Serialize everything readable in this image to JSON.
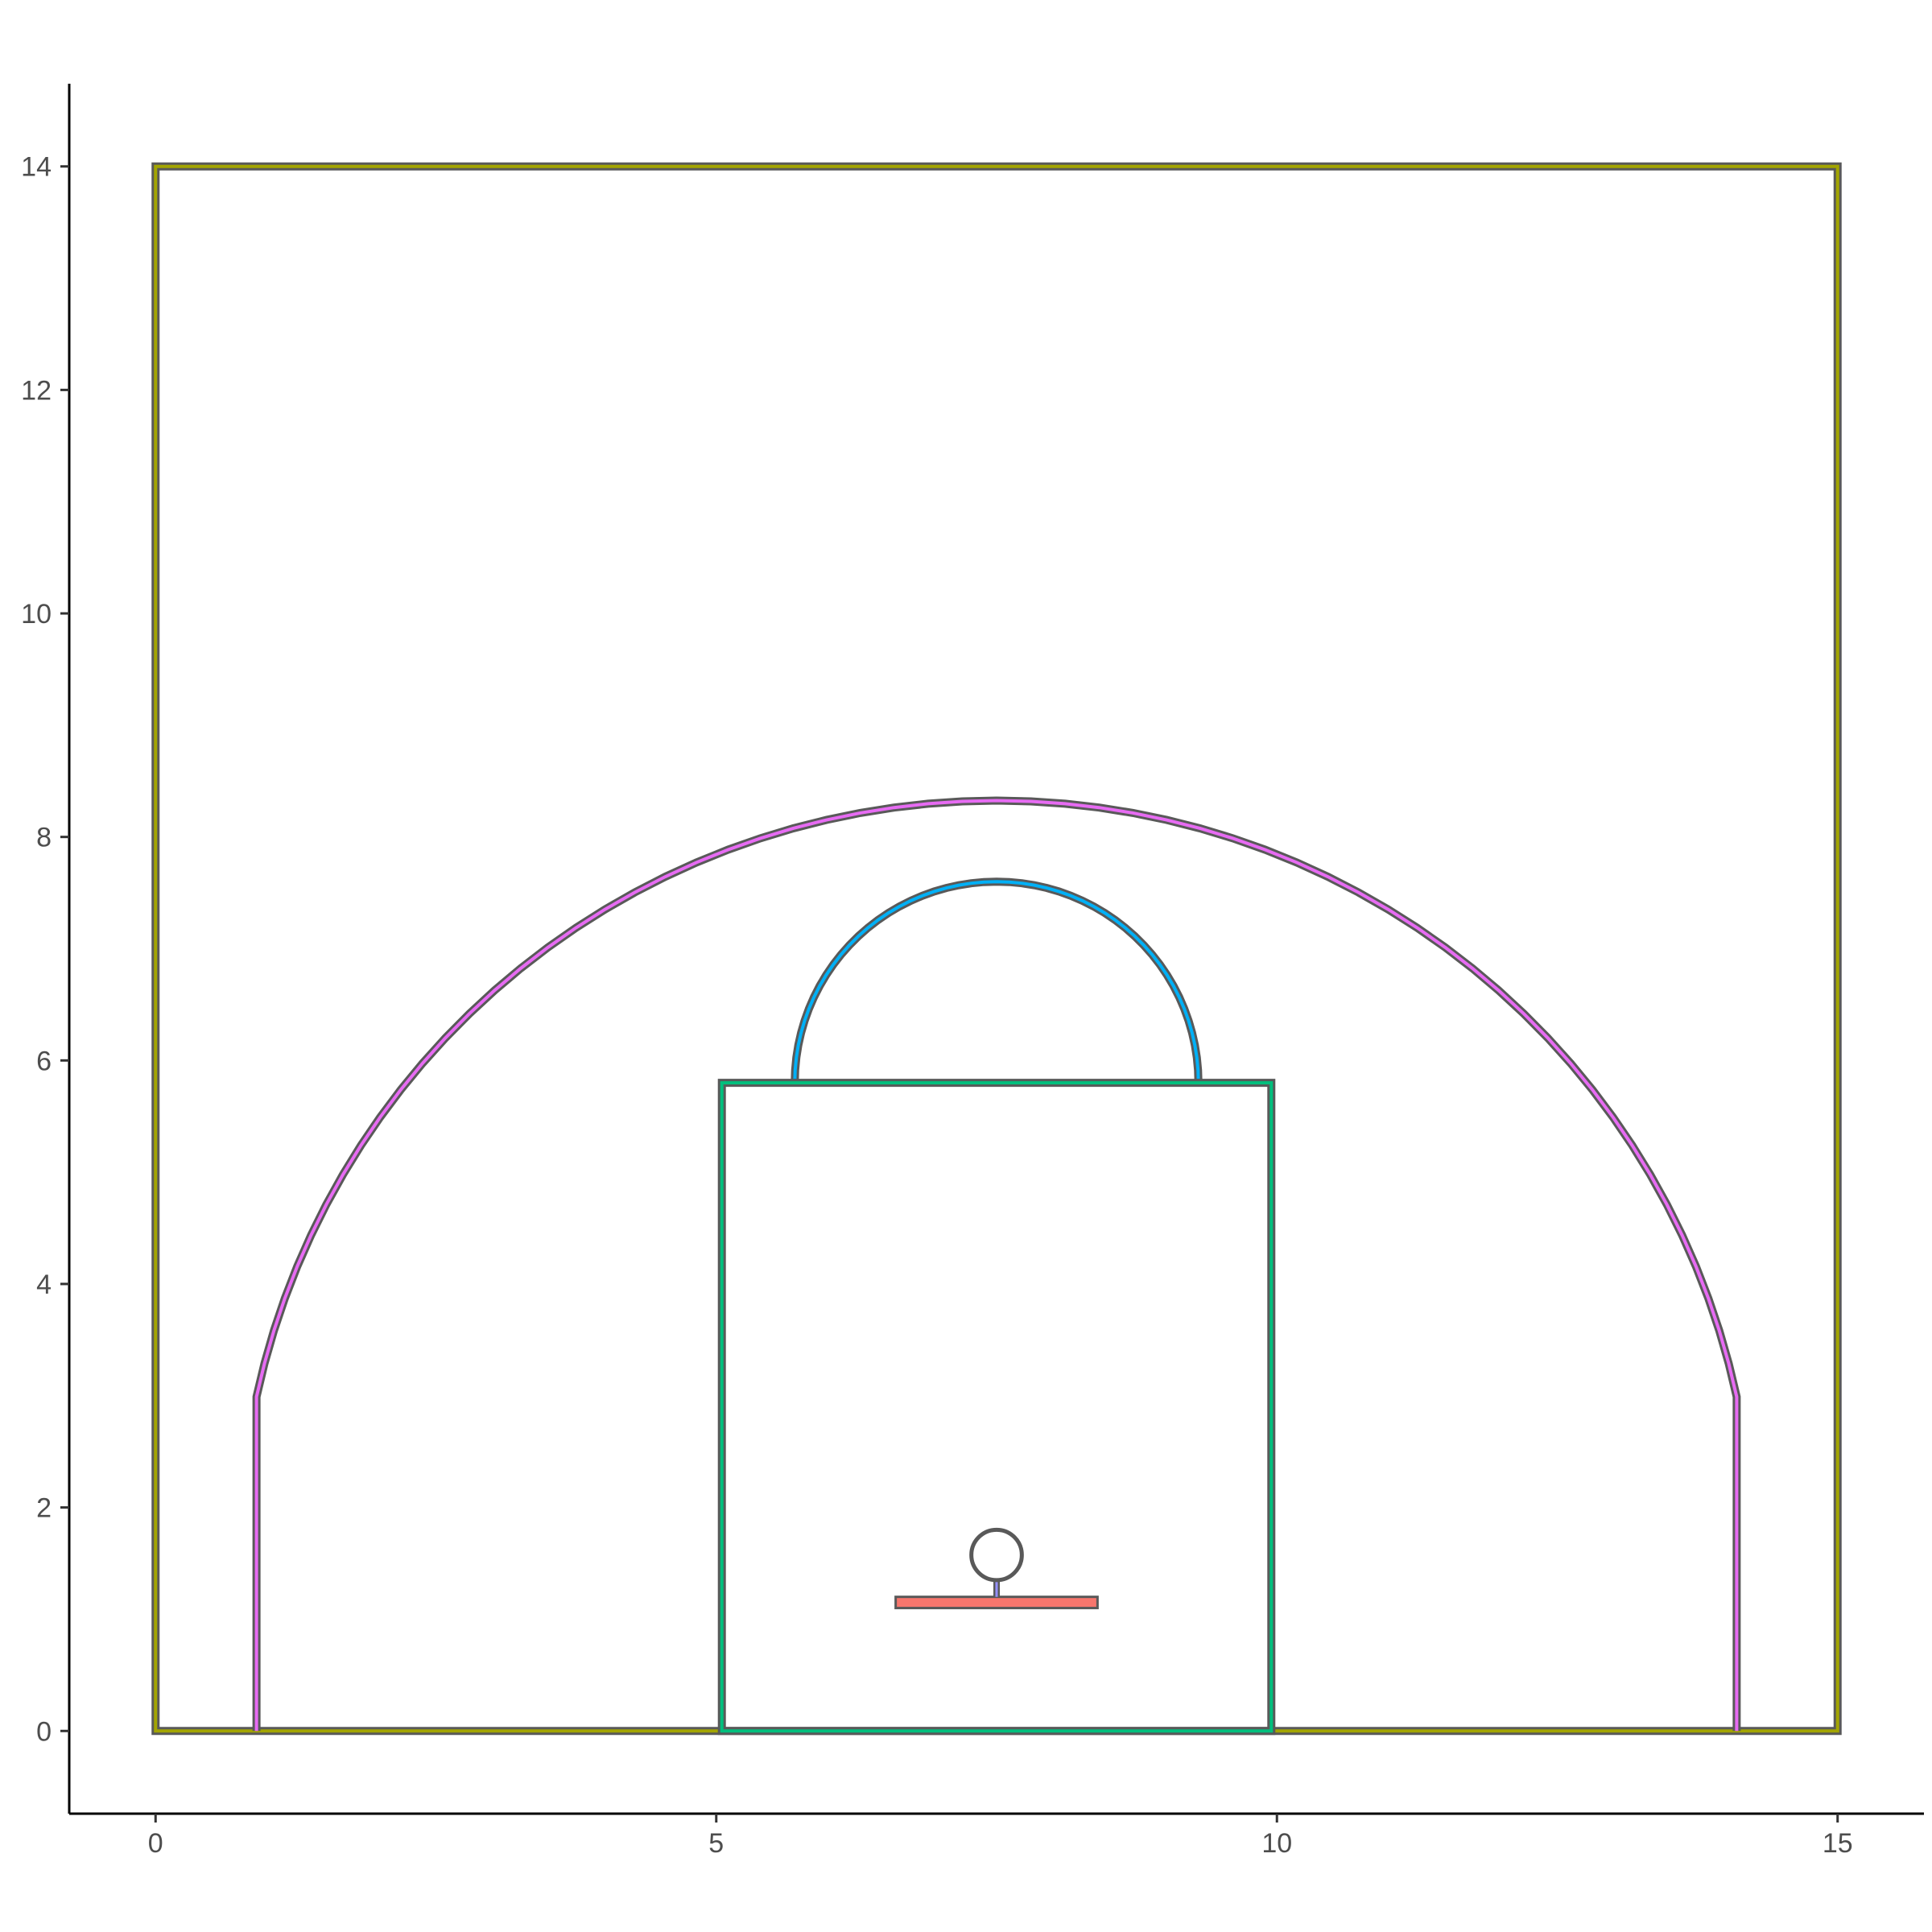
{
  "chart_data": {
    "type": "court-diagram",
    "title": "",
    "xlabel": "",
    "ylabel": "",
    "xlim": [
      -0.77,
      15.77
    ],
    "ylim": [
      -0.74,
      14.74
    ],
    "grid": false,
    "legend": "none",
    "x_ticks": [
      0,
      5,
      10,
      15
    ],
    "y_ticks": [
      0,
      2,
      4,
      6,
      8,
      10,
      12,
      14
    ],
    "outline_color": "#595959",
    "shapes": [
      {
        "name": "court-boundary",
        "kind": "rect",
        "x": [
          0,
          15
        ],
        "y": [
          0,
          14
        ],
        "color": "#A3A500"
      },
      {
        "name": "three-point-line",
        "kind": "arc-with-corners",
        "center": [
          7.5,
          1.575
        ],
        "radius": 6.75,
        "corner_x": [
          0.9,
          14.1
        ],
        "corner_top": 2.99,
        "color": "#E76BF3"
      },
      {
        "name": "free-throw-circle",
        "kind": "semicircle",
        "center": [
          7.5,
          5.8
        ],
        "radius": 1.8,
        "color": "#00B0F6"
      },
      {
        "name": "key-area",
        "kind": "rect",
        "x": [
          5.05,
          9.95
        ],
        "y": [
          0,
          5.8
        ],
        "color": "#00BF7D"
      },
      {
        "name": "backboard",
        "kind": "rect",
        "x": [
          6.6,
          8.4
        ],
        "y": [
          1.1,
          1.2
        ],
        "color": "#F8766D"
      },
      {
        "name": "rim-connector",
        "kind": "line",
        "x": [
          7.5,
          7.5
        ],
        "y": [
          1.2,
          1.35
        ],
        "color": "#9590FF"
      },
      {
        "name": "rim",
        "kind": "circle",
        "center": [
          7.5,
          1.575
        ],
        "radius": 0.225,
        "color": "#595959"
      }
    ]
  }
}
